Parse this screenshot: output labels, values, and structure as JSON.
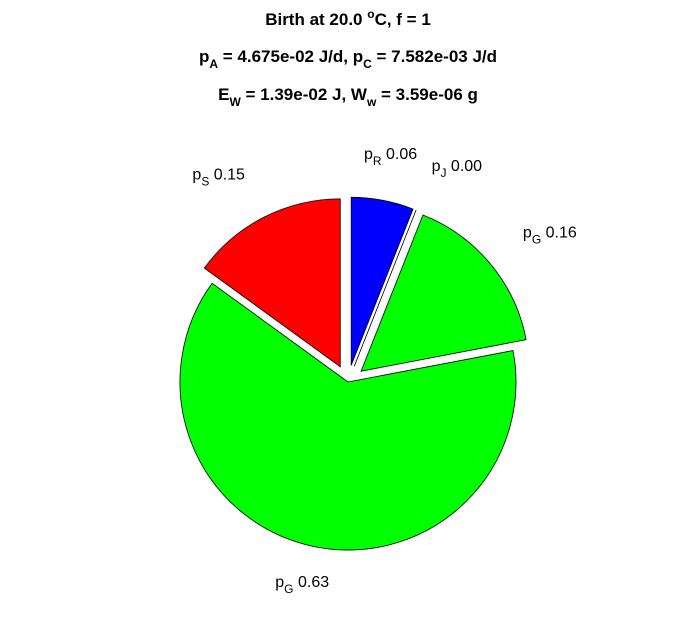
{
  "chart_data": {
    "type": "pie",
    "title": [
      [
        {
          "t": "Birth at 20.0 "
        },
        {
          "t": "o",
          "pos": "sup"
        },
        {
          "t": "C, f = 1"
        }
      ],
      [
        {
          "t": "p"
        },
        {
          "t": "A",
          "pos": "sub"
        },
        {
          "t": " = 4.675e-02 J/d, p"
        },
        {
          "t": "C",
          "pos": "sub"
        },
        {
          "t": " = 7.582e-03 J/d"
        }
      ],
      [
        {
          "t": "E"
        },
        {
          "t": "W",
          "pos": "sub"
        },
        {
          "t": " = 1.39e-02 J, W"
        },
        {
          "t": "w",
          "pos": "sub"
        },
        {
          "t": " = 3.59e-06 g"
        }
      ]
    ],
    "categories": [
      [
        "p",
        "R"
      ],
      [
        "p",
        "J"
      ],
      [
        "p",
        "G"
      ],
      [
        "p",
        "G"
      ],
      [
        "p",
        "S"
      ]
    ],
    "values": [
      0.06,
      0.0,
      0.16,
      0.63,
      0.15
    ],
    "value_labels": [
      "0.06",
      "0.00",
      "0.16",
      "0.63",
      "0.15"
    ],
    "colors": [
      "#0000ff",
      "#ff00ff",
      "#00ff00",
      "#00ff00",
      "#ff0000"
    ],
    "explode": [
      true,
      true,
      true,
      false,
      true
    ]
  }
}
